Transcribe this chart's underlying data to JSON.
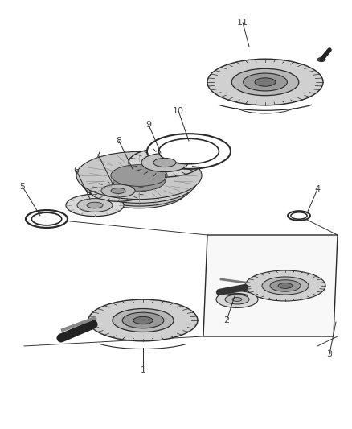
{
  "bg_color": "#ffffff",
  "line_color": "#2a2a2a",
  "label_color": "#444444",
  "fig_width": 4.38,
  "fig_height": 5.33,
  "dpi": 100
}
